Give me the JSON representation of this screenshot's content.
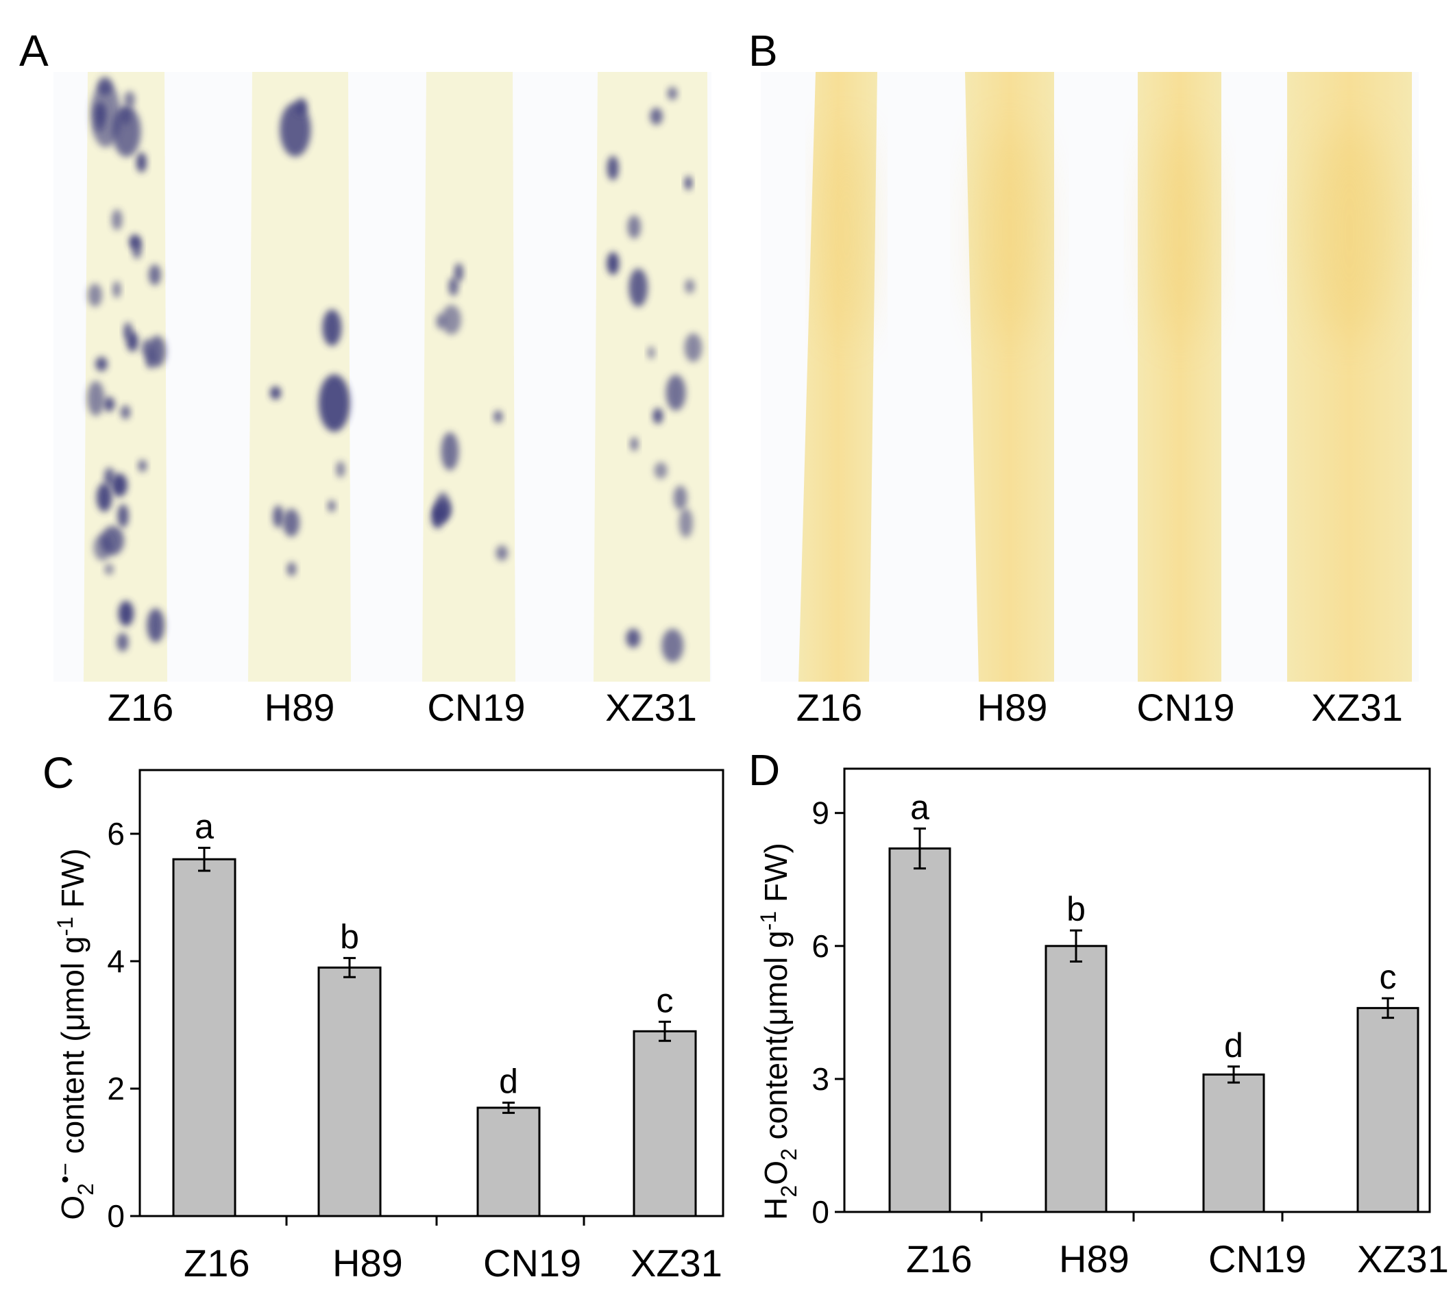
{
  "panels": {
    "A": {
      "letter": "A",
      "leaves": [
        "Z16",
        "H89",
        "CN19",
        "XZ31"
      ]
    },
    "B": {
      "letter": "B",
      "leaves": [
        "Z16",
        "H89",
        "CN19",
        "XZ31"
      ]
    },
    "C": {
      "letter": "C"
    },
    "D": {
      "letter": "D"
    }
  },
  "colors": {
    "bar_fill": "#c0c0c0",
    "nbt_leaf": "#f6f4d8",
    "nbt_stain": "#3b3a7a",
    "dab_leaf": "#f8ecb6",
    "dab_stain": "#f0cc6a"
  },
  "chart_data": [
    {
      "type": "bar",
      "panel": "C",
      "title": "",
      "categories": [
        "Z16",
        "H89",
        "CN19",
        "XZ31"
      ],
      "values": [
        5.6,
        3.9,
        1.7,
        2.9
      ],
      "errors": [
        0.18,
        0.15,
        0.08,
        0.15
      ],
      "significance": [
        "a",
        "b",
        "d",
        "c"
      ],
      "ylim": [
        0,
        7
      ],
      "yticks": [
        "0",
        "2",
        "4",
        "6"
      ],
      "ylabel": {
        "species": "O",
        "sub": "2",
        "sup": "•−",
        "rest": " content (μmol g",
        "unit_sup": "-1",
        "end": " FW)"
      }
    },
    {
      "type": "bar",
      "panel": "D",
      "title": "",
      "categories": [
        "Z16",
        "H89",
        "CN19",
        "XZ31"
      ],
      "values": [
        8.2,
        6.0,
        3.1,
        4.6
      ],
      "errors": [
        0.45,
        0.35,
        0.18,
        0.22
      ],
      "significance": [
        "a",
        "b",
        "d",
        "c"
      ],
      "ylim": [
        0,
        10
      ],
      "yticks": [
        "0",
        "3",
        "6",
        "9"
      ],
      "ylabel": {
        "species": "H",
        "sub": "2",
        "species2": "O",
        "sub2": "2",
        "rest": " content(μmol g",
        "unit_sup": "-1",
        "end": " FW)"
      }
    }
  ]
}
